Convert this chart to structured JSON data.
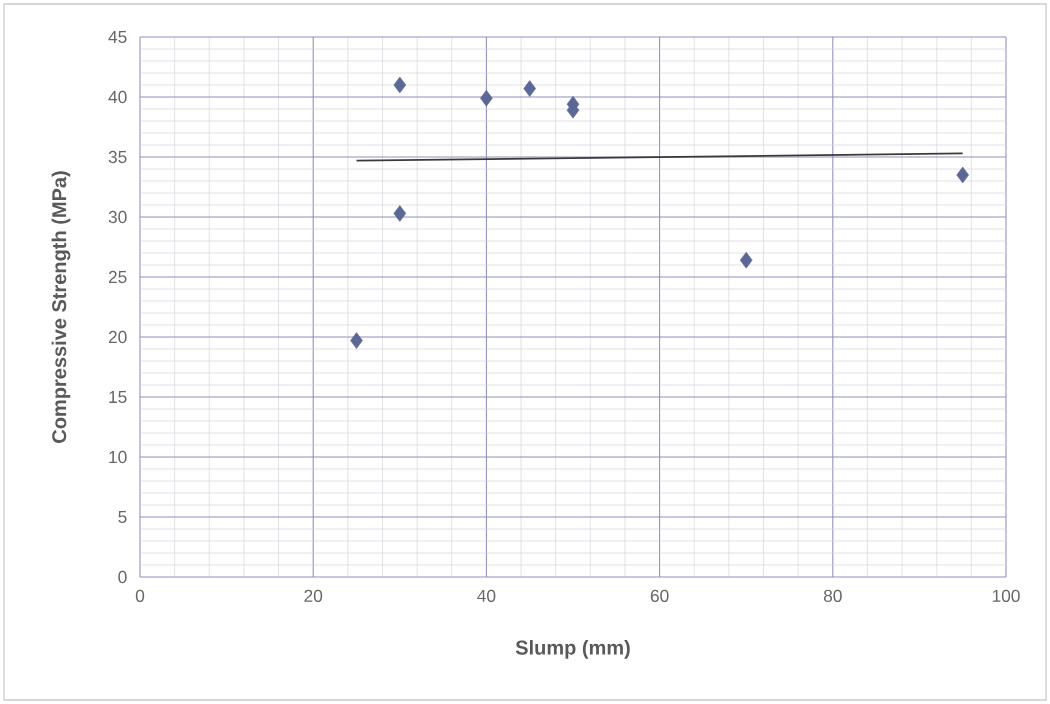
{
  "chart_data": {
    "type": "scatter",
    "xlabel": "Slump (mm)",
    "ylabel": "Compressive Strength (MPa)",
    "xlim": [
      0,
      100
    ],
    "ylim": [
      0,
      45
    ],
    "xticks": [
      0,
      20,
      40,
      60,
      80,
      100
    ],
    "yticks": [
      0,
      5,
      10,
      15,
      20,
      25,
      30,
      35,
      40,
      45
    ],
    "grid": true,
    "marker": "diamond",
    "series": [
      {
        "color": "#5b6794",
        "x": [
          25,
          30,
          30,
          40,
          45,
          50,
          50,
          70,
          95
        ],
        "values": [
          19.7,
          41,
          30.3,
          39.9,
          40.7,
          39.4,
          38.9,
          26.4,
          33.5
        ]
      },
      {
        "type": "line",
        "color": "#3a3a3a",
        "marker": "none",
        "x": [
          25,
          95
        ],
        "values": [
          34.7,
          35.3
        ]
      }
    ]
  }
}
